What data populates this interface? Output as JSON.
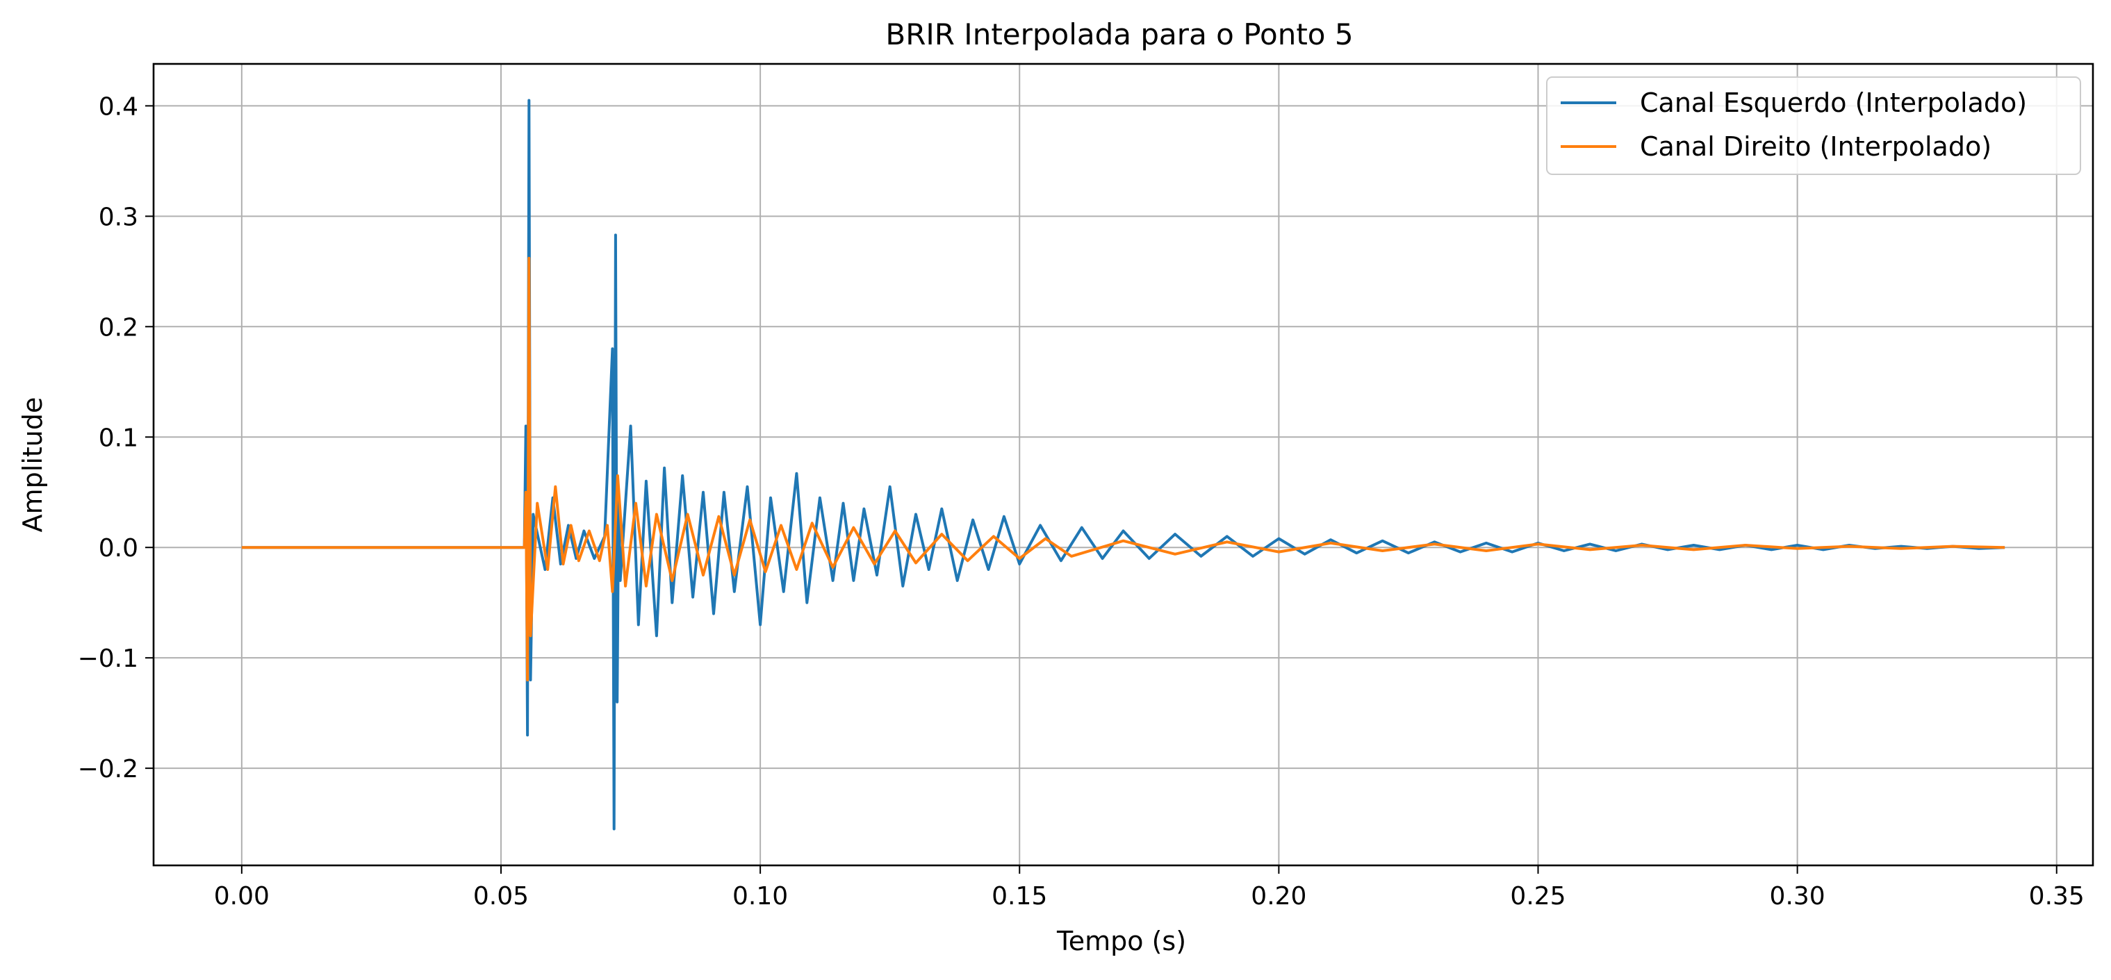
{
  "chart_data": {
    "type": "line",
    "title": "BRIR Interpolada para o Ponto 5",
    "xlabel": "Tempo (s)",
    "ylabel": "Amplitude",
    "xlim": [
      -0.017,
      0.357
    ],
    "ylim": [
      -0.288,
      0.438
    ],
    "xticks": [
      0.0,
      0.05,
      0.1,
      0.15,
      0.2,
      0.25,
      0.3,
      0.35
    ],
    "xtick_labels": [
      "0.00",
      "0.05",
      "0.10",
      "0.15",
      "0.20",
      "0.25",
      "0.30",
      "0.35"
    ],
    "yticks": [
      -0.2,
      -0.1,
      0.0,
      0.1,
      0.2,
      0.3,
      0.4
    ],
    "ytick_labels": [
      "−0.2",
      "−0.1",
      "0.0",
      "0.1",
      "0.2",
      "0.3",
      "0.4"
    ],
    "grid": true,
    "legend_position": "top-right",
    "series": [
      {
        "name": "Canal Esquerdo (Interpolado)",
        "color": "#1f77b4",
        "x": [
          0.0,
          0.0545,
          0.0548,
          0.0551,
          0.0554,
          0.0557,
          0.0562,
          0.0585,
          0.06,
          0.0615,
          0.063,
          0.0645,
          0.066,
          0.068,
          0.07,
          0.0715,
          0.0718,
          0.0721,
          0.0724,
          0.0727,
          0.073,
          0.075,
          0.0765,
          0.078,
          0.08,
          0.0815,
          0.083,
          0.085,
          0.087,
          0.089,
          0.091,
          0.093,
          0.095,
          0.0975,
          0.1,
          0.102,
          0.1045,
          0.107,
          0.109,
          0.1115,
          0.114,
          0.116,
          0.118,
          0.12,
          0.1225,
          0.125,
          0.1275,
          0.13,
          0.1325,
          0.135,
          0.138,
          0.141,
          0.144,
          0.147,
          0.15,
          0.154,
          0.158,
          0.162,
          0.166,
          0.17,
          0.175,
          0.18,
          0.185,
          0.19,
          0.195,
          0.2,
          0.205,
          0.21,
          0.215,
          0.22,
          0.225,
          0.23,
          0.235,
          0.24,
          0.245,
          0.25,
          0.255,
          0.26,
          0.265,
          0.27,
          0.275,
          0.28,
          0.285,
          0.29,
          0.295,
          0.3,
          0.305,
          0.31,
          0.315,
          0.32,
          0.325,
          0.33,
          0.335,
          0.34
        ],
        "y": [
          0.0,
          0.0,
          0.11,
          -0.17,
          0.405,
          -0.12,
          0.03,
          -0.02,
          0.045,
          -0.015,
          0.02,
          -0.01,
          0.015,
          -0.01,
          0.01,
          0.18,
          -0.255,
          0.283,
          -0.14,
          0.05,
          -0.03,
          0.11,
          -0.07,
          0.06,
          -0.08,
          0.072,
          -0.05,
          0.065,
          -0.045,
          0.05,
          -0.06,
          0.05,
          -0.04,
          0.055,
          -0.07,
          0.045,
          -0.04,
          0.067,
          -0.05,
          0.045,
          -0.03,
          0.04,
          -0.03,
          0.035,
          -0.025,
          0.055,
          -0.035,
          0.03,
          -0.02,
          0.035,
          -0.03,
          0.025,
          -0.02,
          0.028,
          -0.015,
          0.02,
          -0.012,
          0.018,
          -0.01,
          0.015,
          -0.01,
          0.012,
          -0.008,
          0.01,
          -0.008,
          0.008,
          -0.006,
          0.007,
          -0.005,
          0.006,
          -0.005,
          0.005,
          -0.004,
          0.004,
          -0.004,
          0.004,
          -0.003,
          0.003,
          -0.003,
          0.003,
          -0.002,
          0.002,
          -0.002,
          0.002,
          -0.002,
          0.002,
          -0.002,
          0.002,
          -0.001,
          0.001,
          -0.001,
          0.001,
          -0.001,
          0.0
        ]
      },
      {
        "name": "Canal Direito (Interpolado)",
        "color": "#ff7f0e",
        "x": [
          0.0,
          0.0545,
          0.0548,
          0.0551,
          0.0554,
          0.0557,
          0.057,
          0.059,
          0.0605,
          0.062,
          0.0635,
          0.065,
          0.067,
          0.069,
          0.0705,
          0.0715,
          0.0725,
          0.074,
          0.076,
          0.078,
          0.08,
          0.083,
          0.086,
          0.089,
          0.092,
          0.095,
          0.098,
          0.101,
          0.104,
          0.107,
          0.11,
          0.114,
          0.118,
          0.122,
          0.126,
          0.13,
          0.135,
          0.14,
          0.145,
          0.15,
          0.155,
          0.16,
          0.17,
          0.18,
          0.19,
          0.2,
          0.21,
          0.22,
          0.23,
          0.24,
          0.25,
          0.26,
          0.27,
          0.28,
          0.29,
          0.3,
          0.31,
          0.32,
          0.33,
          0.34
        ],
        "y": [
          0.0,
          0.0,
          0.05,
          -0.12,
          0.262,
          -0.08,
          0.04,
          -0.02,
          0.055,
          -0.015,
          0.02,
          -0.012,
          0.015,
          -0.012,
          0.02,
          -0.04,
          0.065,
          -0.035,
          0.04,
          -0.035,
          0.03,
          -0.03,
          0.03,
          -0.025,
          0.028,
          -0.025,
          0.025,
          -0.022,
          0.02,
          -0.02,
          0.022,
          -0.018,
          0.018,
          -0.015,
          0.015,
          -0.014,
          0.012,
          -0.012,
          0.01,
          -0.01,
          0.008,
          -0.008,
          0.006,
          -0.006,
          0.005,
          -0.004,
          0.004,
          -0.003,
          0.003,
          -0.003,
          0.003,
          -0.002,
          0.002,
          -0.002,
          0.002,
          -0.001,
          0.001,
          -0.001,
          0.001,
          0.0
        ]
      }
    ]
  }
}
